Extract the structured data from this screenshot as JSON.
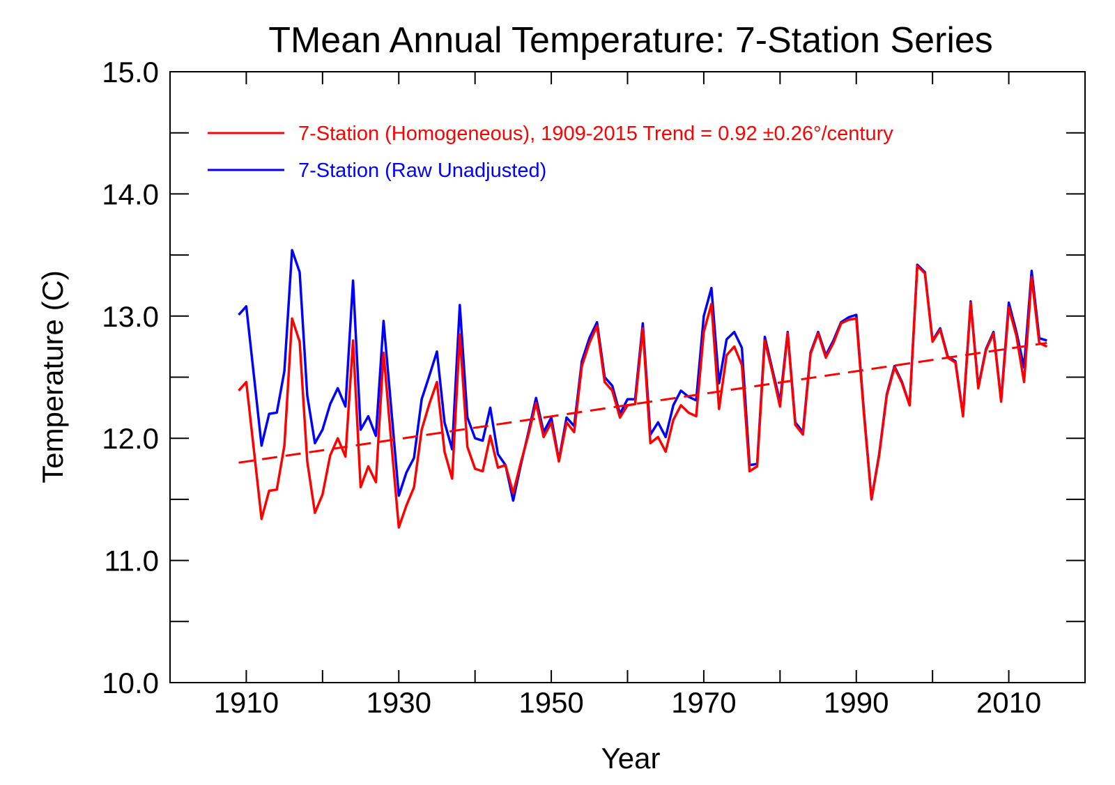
{
  "chart_data": {
    "type": "line",
    "title": "TMean Annual Temperature: 7-Station Series",
    "xlabel": "Year",
    "ylabel": "Temperature (C)",
    "xlim": [
      1900,
      2020
    ],
    "ylim": [
      10.0,
      15.0
    ],
    "x_ticks": [
      1910,
      1930,
      1950,
      1970,
      1990,
      2010
    ],
    "x_minor_ticks": [
      1920,
      1940,
      1960,
      1980,
      2000
    ],
    "y_ticks": [
      "10.0",
      "11.0",
      "12.0",
      "13.0",
      "14.0",
      "15.0"
    ],
    "y_tick_values": [
      10.0,
      11.0,
      12.0,
      13.0,
      14.0,
      15.0
    ],
    "y_minor_ticks": [
      10.5,
      11.5,
      12.5,
      13.5,
      14.5
    ],
    "grid": false,
    "legend_position": "top-left",
    "x": [
      1909,
      1910,
      1911,
      1912,
      1913,
      1914,
      1915,
      1916,
      1917,
      1918,
      1919,
      1920,
      1921,
      1922,
      1923,
      1924,
      1925,
      1926,
      1927,
      1928,
      1929,
      1930,
      1931,
      1932,
      1933,
      1934,
      1935,
      1936,
      1937,
      1938,
      1939,
      1940,
      1941,
      1942,
      1943,
      1944,
      1945,
      1946,
      1947,
      1948,
      1949,
      1950,
      1951,
      1952,
      1953,
      1954,
      1955,
      1956,
      1957,
      1958,
      1959,
      1960,
      1961,
      1962,
      1963,
      1964,
      1965,
      1966,
      1967,
      1968,
      1969,
      1970,
      1971,
      1972,
      1973,
      1974,
      1975,
      1976,
      1977,
      1978,
      1979,
      1980,
      1981,
      1982,
      1983,
      1984,
      1985,
      1986,
      1987,
      1988,
      1989,
      1990,
      1991,
      1992,
      1993,
      1994,
      1995,
      1996,
      1997,
      1998,
      1999,
      2000,
      2001,
      2002,
      2003,
      2004,
      2005,
      2006,
      2007,
      2008,
      2009,
      2010,
      2011,
      2012,
      2013,
      2014,
      2015
    ],
    "series": [
      {
        "name": "7-Station (Homogeneous), 1909-2015 Trend = 0.92 ±0.26°/century",
        "color": "#ff0000",
        "values": [
          12.39,
          12.46,
          11.9,
          11.34,
          11.57,
          11.58,
          11.94,
          12.98,
          12.79,
          11.81,
          11.39,
          11.54,
          11.86,
          12.0,
          11.85,
          12.8,
          11.6,
          11.77,
          11.64,
          12.7,
          11.98,
          11.27,
          11.45,
          11.6,
          12.07,
          12.28,
          12.46,
          11.89,
          11.67,
          12.85,
          11.93,
          11.75,
          11.73,
          12.02,
          11.76,
          11.78,
          11.55,
          11.8,
          12.03,
          12.29,
          12.01,
          12.13,
          11.81,
          12.13,
          12.05,
          12.59,
          12.78,
          12.92,
          12.46,
          12.39,
          12.17,
          12.27,
          12.28,
          12.9,
          11.96,
          12.01,
          11.89,
          12.15,
          12.27,
          12.21,
          12.18,
          12.87,
          13.1,
          12.24,
          12.68,
          12.75,
          12.6,
          11.73,
          11.77,
          12.8,
          12.54,
          12.26,
          12.86,
          12.11,
          12.03,
          12.69,
          12.86,
          12.66,
          12.78,
          12.94,
          12.97,
          12.98,
          12.2,
          11.5,
          11.86,
          12.35,
          12.58,
          12.45,
          12.27,
          13.41,
          13.35,
          12.79,
          12.89,
          12.66,
          12.62,
          12.18,
          13.11,
          12.41,
          12.72,
          12.86,
          12.3,
          13.07,
          12.84,
          12.46,
          13.32,
          12.78,
          12.75
        ]
      },
      {
        "name": "7-Station (Raw Unadjusted)",
        "color": "#0000ff",
        "values": [
          13.01,
          13.08,
          12.51,
          11.94,
          12.2,
          12.21,
          12.55,
          13.54,
          13.36,
          12.35,
          11.96,
          12.07,
          12.28,
          12.41,
          12.26,
          13.29,
          12.07,
          12.18,
          12.02,
          12.96,
          12.25,
          11.53,
          11.72,
          11.84,
          12.32,
          12.51,
          12.71,
          12.13,
          11.91,
          13.09,
          12.17,
          12.0,
          11.98,
          12.25,
          11.87,
          11.78,
          11.49,
          11.78,
          12.05,
          12.33,
          12.05,
          12.17,
          11.82,
          12.17,
          12.1,
          12.63,
          12.82,
          12.95,
          12.5,
          12.43,
          12.2,
          12.32,
          12.32,
          12.94,
          12.03,
          12.13,
          12.01,
          12.27,
          12.39,
          12.34,
          12.31,
          13.0,
          13.23,
          12.45,
          12.81,
          12.87,
          12.74,
          11.78,
          11.79,
          12.83,
          12.56,
          12.3,
          12.87,
          12.13,
          12.05,
          12.7,
          12.87,
          12.68,
          12.8,
          12.95,
          12.99,
          13.01,
          12.22,
          11.5,
          11.87,
          12.36,
          12.59,
          12.46,
          12.27,
          13.42,
          13.36,
          12.8,
          12.9,
          12.67,
          12.63,
          12.19,
          13.12,
          12.42,
          12.73,
          12.87,
          12.31,
          13.11,
          12.87,
          12.58,
          13.37,
          12.82,
          12.8
        ]
      }
    ],
    "trend_line": {
      "name": "Homogeneous linear trend",
      "color": "#ff0000",
      "style": "dashed",
      "x": [
        1909,
        2015
      ],
      "y": [
        11.8,
        12.78
      ],
      "slope_per_century": 0.92,
      "uncertainty": 0.26
    },
    "legend": [
      {
        "label": "7-Station (Homogeneous), 1909-2015 Trend = 0.92 ±0.26°/century",
        "color": "#ff0000"
      },
      {
        "label": "7-Station (Raw Unadjusted)",
        "color": "#0000ff"
      }
    ]
  }
}
